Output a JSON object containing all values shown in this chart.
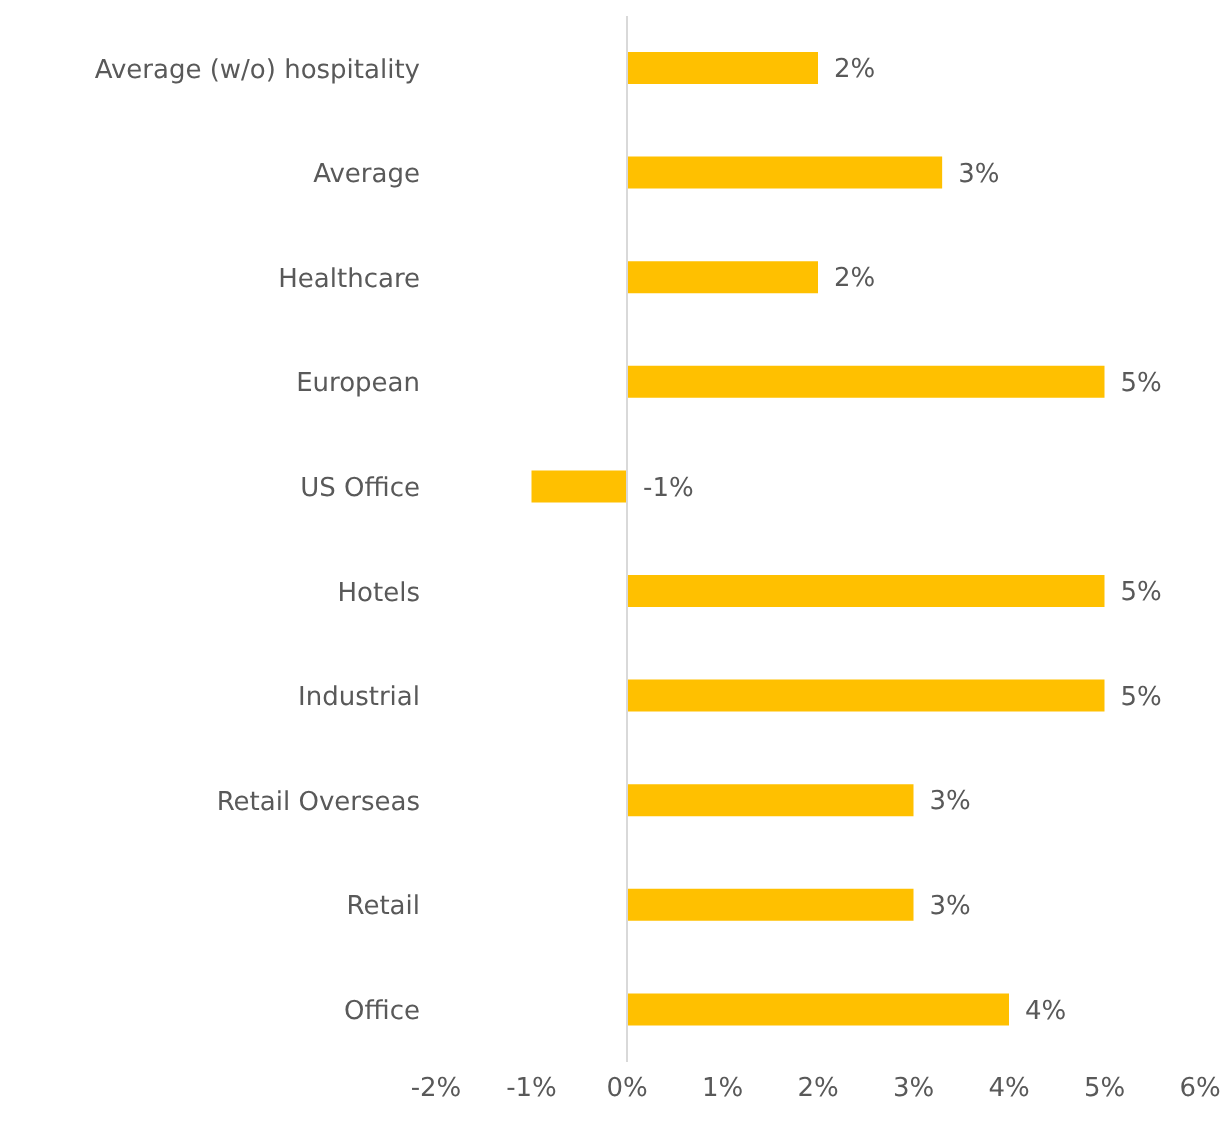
{
  "chart_data": {
    "type": "bar",
    "orientation": "horizontal",
    "categories": [
      "Average (w/o) hospitality",
      "Average",
      "Healthcare",
      "European",
      "US Office",
      "Hotels",
      "Industrial",
      "Retail Overseas",
      "Retail",
      "Office"
    ],
    "values": [
      2.0,
      3.3,
      2.0,
      5.0,
      -1.0,
      5.0,
      5.0,
      3.0,
      3.0,
      4.0
    ],
    "value_labels": [
      "2%",
      "3%",
      "2%",
      "5%",
      "-1%",
      "5%",
      "5%",
      "3%",
      "3%",
      "4%"
    ],
    "color": "#ffc000",
    "xlim": [
      -2,
      6
    ],
    "xticks": [
      {
        "value": -2,
        "label": "-2%"
      },
      {
        "value": -1,
        "label": "-1%"
      },
      {
        "value": 0,
        "label": "0%"
      },
      {
        "value": 1,
        "label": "1%"
      },
      {
        "value": 2,
        "label": "2%"
      },
      {
        "value": 3,
        "label": "3%"
      },
      {
        "value": 4,
        "label": "4%"
      },
      {
        "value": 5,
        "label": "5%"
      },
      {
        "value": 6,
        "label": "6%"
      }
    ],
    "ref_lines": [
      {
        "axis": "x",
        "value": 0,
        "color": "#d9d9d9"
      }
    ],
    "grid": false,
    "legend": false
  }
}
